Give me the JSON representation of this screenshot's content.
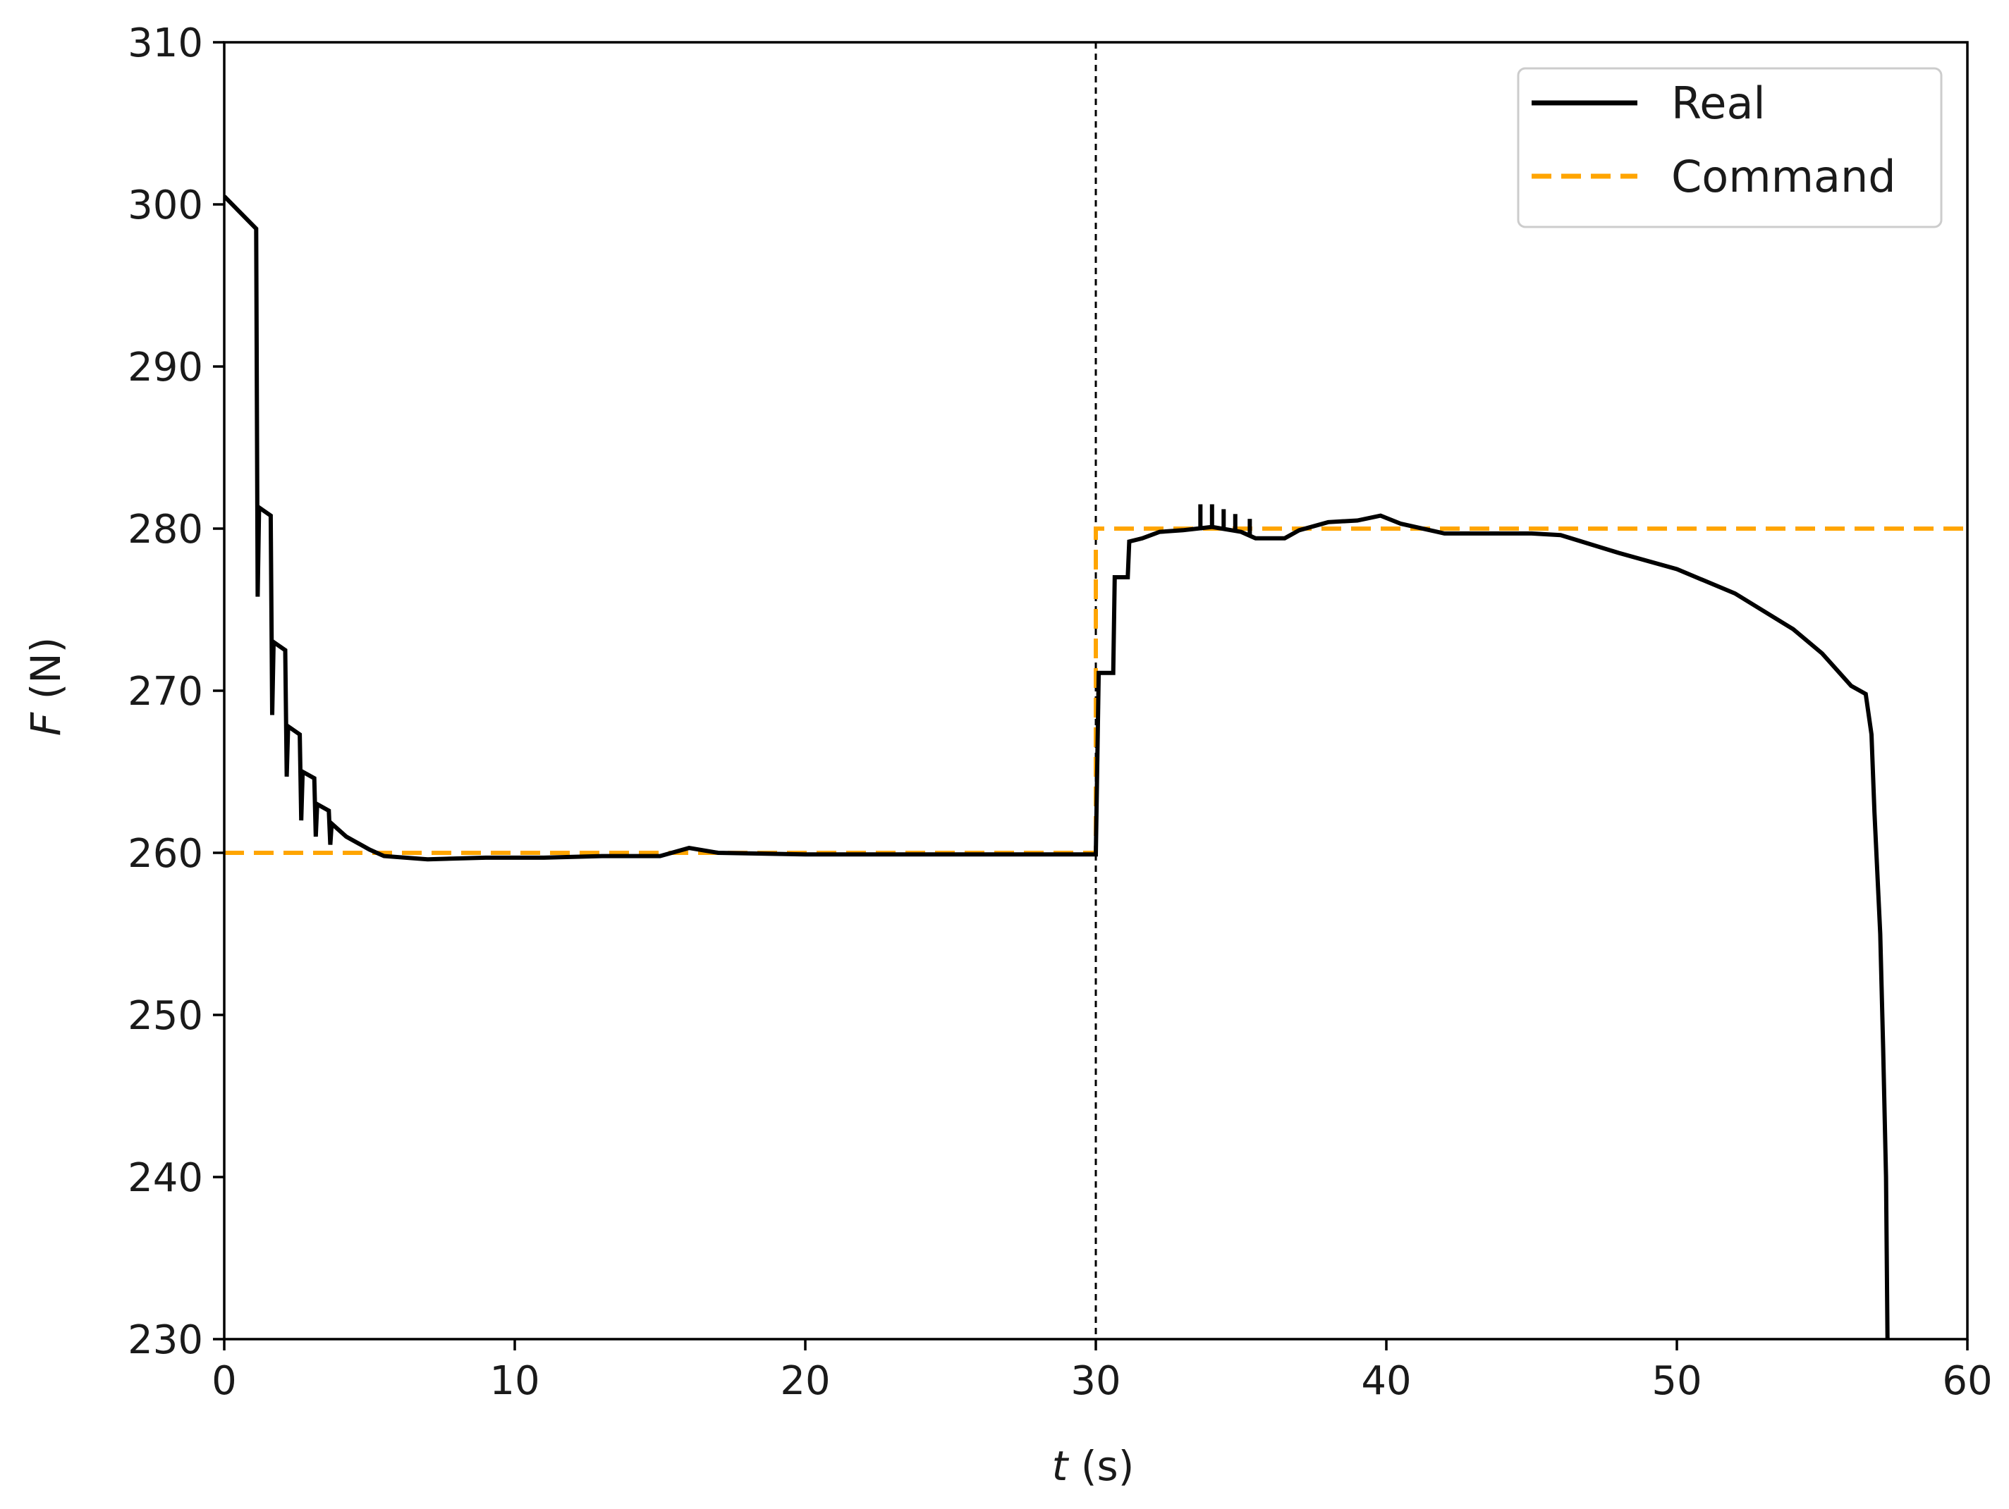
{
  "chart_data": {
    "type": "line",
    "title": "",
    "xlabel": "t (s)",
    "xlabel_var": "t",
    "xlabel_unit": " (s)",
    "ylabel": "F (N)",
    "ylabel_var": "F",
    "ylabel_unit": " (N)",
    "xlim": [
      0,
      60
    ],
    "ylim": [
      230,
      310
    ],
    "xticks": [
      0,
      10,
      20,
      30,
      40,
      50,
      60
    ],
    "yticks": [
      230,
      240,
      250,
      260,
      270,
      280,
      290,
      300,
      310
    ],
    "grid": false,
    "legend_position": "top-right",
    "vline": {
      "x": 30,
      "color": "#000000",
      "style": "dashed"
    },
    "series": [
      {
        "name": "Real",
        "color": "#000000",
        "style": "solid",
        "points": [
          [
            0,
            300.5
          ],
          [
            1.1,
            298.5
          ],
          [
            1.15,
            275.8
          ],
          [
            1.2,
            281.3
          ],
          [
            1.6,
            280.8
          ],
          [
            1.65,
            268.5
          ],
          [
            1.7,
            273.0
          ],
          [
            2.1,
            272.5
          ],
          [
            2.15,
            264.7
          ],
          [
            2.2,
            267.8
          ],
          [
            2.6,
            267.3
          ],
          [
            2.65,
            262.0
          ],
          [
            2.7,
            265.0
          ],
          [
            3.1,
            264.6
          ],
          [
            3.15,
            261.0
          ],
          [
            3.2,
            263.0
          ],
          [
            3.6,
            262.6
          ],
          [
            3.65,
            260.5
          ],
          [
            3.7,
            261.8
          ],
          [
            4.2,
            261.0
          ],
          [
            5.0,
            260.2
          ],
          [
            5.5,
            259.8
          ],
          [
            7,
            259.6
          ],
          [
            9,
            259.7
          ],
          [
            11,
            259.7
          ],
          [
            13,
            259.8
          ],
          [
            15,
            259.8
          ],
          [
            16,
            260.3
          ],
          [
            17,
            260.0
          ],
          [
            20,
            259.9
          ],
          [
            25,
            259.9
          ],
          [
            29.5,
            259.9
          ],
          [
            30.0,
            259.9
          ],
          [
            30.1,
            271.1
          ],
          [
            30.6,
            271.1
          ],
          [
            30.65,
            277.0
          ],
          [
            31.1,
            277.0
          ],
          [
            31.15,
            279.2
          ],
          [
            31.6,
            279.4
          ],
          [
            32.2,
            279.8
          ],
          [
            33,
            279.9
          ],
          [
            34,
            280.1
          ],
          [
            35,
            279.8
          ],
          [
            35.5,
            279.4
          ],
          [
            36.5,
            279.4
          ],
          [
            37,
            279.9
          ],
          [
            38,
            280.4
          ],
          [
            39,
            280.5
          ],
          [
            39.8,
            280.8
          ],
          [
            40.5,
            280.3
          ],
          [
            42,
            279.7
          ],
          [
            45,
            279.7
          ],
          [
            46,
            279.6
          ],
          [
            48,
            278.5
          ],
          [
            50,
            277.5
          ],
          [
            52,
            276.0
          ],
          [
            54,
            273.8
          ],
          [
            55,
            272.3
          ],
          [
            56,
            270.3
          ],
          [
            56.5,
            269.8
          ],
          [
            56.7,
            267.3
          ],
          [
            56.8,
            262.5
          ],
          [
            57.0,
            255.0
          ],
          [
            57.1,
            248.0
          ],
          [
            57.2,
            240.0
          ],
          [
            57.25,
            230.0
          ]
        ]
      },
      {
        "name": "Command",
        "color": "#FFA500",
        "style": "dashed",
        "points": [
          [
            0,
            260
          ],
          [
            30,
            260
          ],
          [
            30,
            280
          ],
          [
            60,
            280
          ]
        ]
      }
    ],
    "spikes": [
      {
        "x": 33.6,
        "y1": 279.9,
        "y2": 281.5
      },
      {
        "x": 34.0,
        "y1": 280.0,
        "y2": 281.5
      },
      {
        "x": 34.4,
        "y1": 280.0,
        "y2": 281.2
      },
      {
        "x": 34.8,
        "y1": 279.8,
        "y2": 280.9
      },
      {
        "x": 35.3,
        "y1": 279.6,
        "y2": 280.6
      }
    ]
  }
}
